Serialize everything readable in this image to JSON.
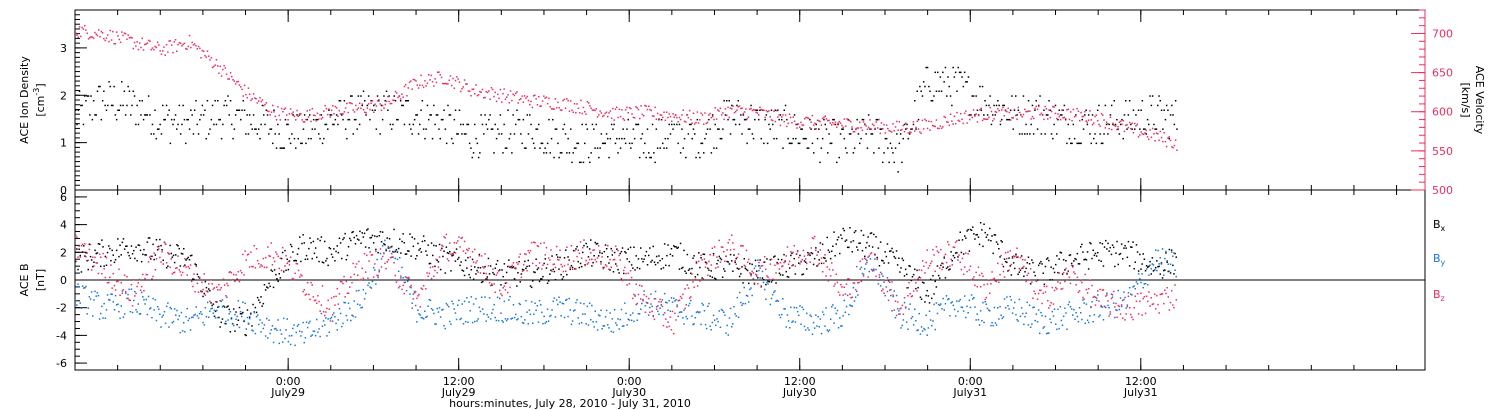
{
  "figure": {
    "xlabel": "hours:minutes, July 28, 2010 - July 31, 2010",
    "time_ticks": [
      {
        "label": "0:00",
        "sublabel": "July29",
        "hour": 0
      },
      {
        "label": "12:00",
        "sublabel": "July29",
        "hour": 12
      },
      {
        "label": "0:00",
        "sublabel": "July30",
        "hour": 24
      },
      {
        "label": "12:00",
        "sublabel": "July30",
        "hour": 36
      },
      {
        "label": "0:00",
        "sublabel": "July31",
        "hour": 48
      },
      {
        "label": "12:00",
        "sublabel": "July31",
        "hour": 60
      }
    ]
  },
  "chart_data": [
    {
      "type": "scatter",
      "panel": "top",
      "ylabel": "ACE Ion Density",
      "ylabel_unit": "[cm^-3]",
      "ylim": [
        0,
        3.8
      ],
      "yticks": [
        "0",
        "1",
        "2",
        "3"
      ],
      "y2label": "ACE Velocity",
      "y2label_unit": "[km/s]",
      "y2lim": [
        500,
        730
      ],
      "y2ticks": [
        "500",
        "550",
        "600",
        "650",
        "700"
      ],
      "xlim_hours": [
        -15,
        80
      ],
      "x_hours": [
        -15,
        -13,
        -11,
        -9,
        -7,
        -5,
        -3,
        -1,
        1,
        3,
        5,
        7,
        9,
        11,
        13,
        15,
        17,
        19,
        21,
        23,
        25,
        27,
        29,
        31,
        33,
        35,
        37,
        39,
        41,
        43,
        45,
        47,
        49,
        51,
        53,
        55,
        57,
        59,
        61,
        62.5
      ],
      "series": [
        {
          "name": "",
          "color": "#000000",
          "axis": "left",
          "values": [
            1.6,
            1.9,
            1.8,
            1.5,
            1.4,
            1.6,
            1.5,
            1.3,
            1.2,
            1.5,
            1.6,
            1.7,
            1.6,
            1.4,
            1.1,
            1.2,
            1.3,
            1.1,
            1.0,
            1.1,
            1.0,
            1.2,
            1.1,
            1.6,
            1.4,
            1.3,
            1.1,
            1.0,
            1.2,
            0.8,
            2.3,
            2.2,
            1.9,
            1.6,
            1.6,
            1.4,
            1.4,
            1.5,
            1.6,
            1.5
          ]
        },
        {
          "name": "",
          "color": "#e8305e",
          "axis": "right",
          "values": [
            705,
            700,
            690,
            680,
            690,
            660,
            625,
            600,
            595,
            602,
            605,
            612,
            638,
            645,
            628,
            622,
            615,
            612,
            606,
            598,
            600,
            596,
            592,
            602,
            600,
            590,
            587,
            585,
            583,
            580,
            583,
            593,
            598,
            597,
            600,
            598,
            592,
            580,
            570,
            560
          ]
        }
      ]
    },
    {
      "type": "scatter",
      "panel": "bottom",
      "ylabel": "ACE B",
      "ylabel_unit": "[nT]",
      "ylim": [
        -6.5,
        6.5
      ],
      "yticks": [
        "-6",
        "-4",
        "-2",
        "0",
        "2",
        "4",
        "6"
      ],
      "xlim_hours": [
        -15,
        80
      ],
      "x_hours": [
        -15,
        -13,
        -11,
        -9,
        -7,
        -5,
        -3,
        -1,
        1,
        3,
        5,
        7,
        9,
        11,
        13,
        15,
        17,
        19,
        21,
        23,
        25,
        27,
        29,
        31,
        33,
        35,
        37,
        39,
        41,
        43,
        45,
        47,
        49,
        51,
        53,
        55,
        57,
        59,
        61,
        62.5
      ],
      "series": [
        {
          "name": "Bx",
          "color": "#000000",
          "values": [
            1.5,
            2.0,
            2.5,
            2.0,
            1.5,
            -2.5,
            -3.0,
            0.5,
            2.5,
            2.0,
            3.0,
            3.0,
            2.5,
            1.5,
            1.0,
            0.5,
            0.5,
            1.0,
            2.0,
            1.5,
            1.5,
            2.0,
            1.0,
            1.0,
            0.5,
            1.0,
            1.5,
            3.0,
            2.5,
            1.0,
            -1.0,
            2.5,
            3.5,
            1.0,
            0.5,
            1.5,
            2.0,
            2.0,
            1.0,
            1.5
          ]
        },
        {
          "name": "By",
          "color": "#1877d6",
          "values": [
            -1.0,
            -2.0,
            -1.5,
            -2.5,
            -3.0,
            -2.0,
            -2.5,
            -3.5,
            -4.0,
            -3.0,
            -1.5,
            2.5,
            -2.0,
            -2.5,
            -2.0,
            -2.0,
            -2.5,
            -2.0,
            -2.5,
            -3.0,
            -1.5,
            -2.0,
            -2.5,
            -3.0,
            0.5,
            -2.5,
            -3.0,
            -2.5,
            1.5,
            -2.5,
            -3.0,
            -1.5,
            -2.5,
            -2.0,
            -3.0,
            -2.5,
            -2.0,
            -1.5,
            1.5,
            1.0
          ]
        },
        {
          "name": "Bz",
          "color": "#e8305e",
          "values": [
            2.5,
            1.0,
            -1.0,
            2.0,
            0.5,
            -1.0,
            1.5,
            2.0,
            0.0,
            -2.0,
            1.0,
            1.5,
            -1.5,
            2.5,
            2.0,
            -0.5,
            2.0,
            1.5,
            2.0,
            1.5,
            -1.5,
            -3.0,
            1.0,
            2.5,
            0.5,
            1.5,
            2.5,
            -1.0,
            1.5,
            -2.0,
            1.5,
            2.0,
            -0.5,
            2.0,
            -1.5,
            0.5,
            -1.5,
            -2.0,
            -1.5,
            -1.0
          ]
        }
      ]
    }
  ]
}
